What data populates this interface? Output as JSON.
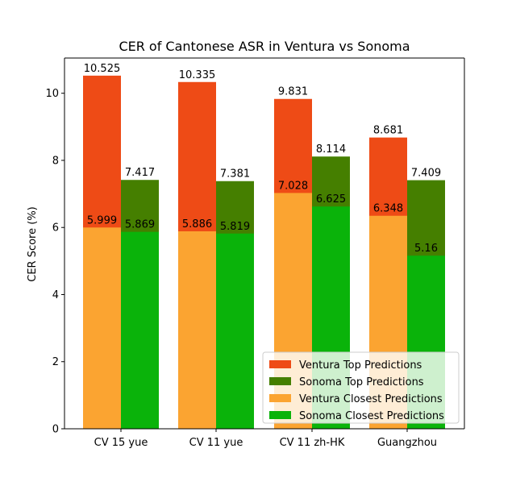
{
  "chart_data": {
    "type": "bar",
    "title": "CER of Cantonese ASR in Ventura vs Sonoma",
    "xlabel": "",
    "ylabel": "CER Score (%)",
    "ylim": [
      0,
      11.05
    ],
    "yticks": [
      0,
      2,
      4,
      6,
      8,
      10
    ],
    "categories": [
      "CV 15 yue",
      "CV 11 yue",
      "CV 11 zh-HK",
      "Guangzhou"
    ],
    "grid": false,
    "legend_position": "bottom-right",
    "series": [
      {
        "name": "Ventura Top Predictions",
        "color": "#ee4b16",
        "group": "Ventura",
        "layer": "back",
        "values": [
          10.525,
          10.335,
          9.831,
          8.681
        ],
        "labels": [
          "10.525",
          "10.335",
          "9.831",
          "8.681"
        ]
      },
      {
        "name": "Sonoma Top Predictions",
        "color": "#457f00",
        "group": "Sonoma",
        "layer": "back",
        "values": [
          7.417,
          7.381,
          8.114,
          7.409
        ],
        "labels": [
          "7.417",
          "7.381",
          "8.114",
          "7.409"
        ]
      },
      {
        "name": "Ventura Closest Predictions",
        "color": "#fba431",
        "group": "Ventura",
        "layer": "front",
        "values": [
          5.999,
          5.886,
          7.028,
          6.348
        ],
        "labels": [
          "5.999",
          "5.886",
          "7.028",
          "6.348"
        ]
      },
      {
        "name": "Sonoma Closest Predictions",
        "color": "#0ab30a",
        "group": "Sonoma",
        "layer": "front",
        "values": [
          5.869,
          5.819,
          6.625,
          5.16
        ],
        "labels": [
          "5.869",
          "5.819",
          "6.625",
          "5.16"
        ]
      }
    ]
  }
}
